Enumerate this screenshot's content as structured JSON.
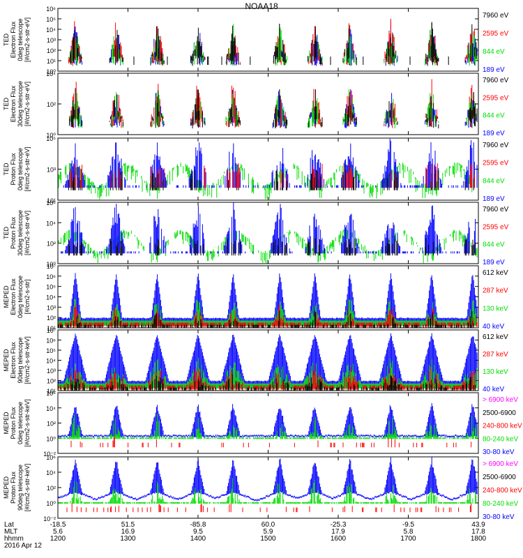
{
  "title": "NOAA18",
  "panels": [
    {
      "ylabel": [
        "TED",
        "Electron Flux",
        "0deg telescope",
        "[#/cm2-s-str-eV]"
      ],
      "yticks": [
        "10⁶",
        "10⁵",
        "10⁴",
        "10³",
        "10²",
        "10¹",
        "10⁰"
      ],
      "ylim": [
        0,
        6
      ],
      "legend": [
        {
          "text": "7960 eV",
          "color": "#000000"
        },
        {
          "text": "2595 eV",
          "color": "#ff0000"
        },
        {
          "text": "844 eV",
          "color": "#00dd00"
        },
        {
          "text": "189 eV",
          "color": "#0000ff"
        }
      ]
    },
    {
      "ylabel": [
        "TED",
        "Electron Flux",
        "30deg telescope",
        "[#/cm2-s-str-eV]"
      ],
      "yticks": [
        "10⁴",
        "10²",
        "10⁰"
      ],
      "ylim": [
        0,
        5
      ],
      "legend": [
        {
          "text": "7960 eV",
          "color": "#000000"
        },
        {
          "text": "2595 eV",
          "color": "#ff0000"
        },
        {
          "text": "844 eV",
          "color": "#00dd00"
        },
        {
          "text": "189 eV",
          "color": "#0000ff"
        }
      ]
    },
    {
      "ylabel": [
        "TED",
        "Proton Flux",
        "0deg telescope",
        "[#/cm2-s-str-eV]"
      ],
      "yticks": [
        "10⁵",
        "10³",
        "10¹"
      ],
      "ylim": [
        0,
        5
      ],
      "legend": [
        {
          "text": "7960 eV",
          "color": "#000000"
        },
        {
          "text": "2595 eV",
          "color": "#ff0000"
        },
        {
          "text": "844 eV",
          "color": "#00dd00"
        },
        {
          "text": "189 eV",
          "color": "#0000ff"
        }
      ]
    },
    {
      "ylabel": [
        "TED",
        "Proton Flux",
        "30deg telescope",
        "[#/cm2-s-str-eV]"
      ],
      "yticks": [
        "10⁶",
        "10⁴",
        "10²",
        "10⁰"
      ],
      "ylim": [
        0,
        6
      ],
      "legend": [
        {
          "text": "7960 eV",
          "color": "#000000"
        },
        {
          "text": "2595 eV",
          "color": "#ff0000"
        },
        {
          "text": "844 eV",
          "color": "#00dd00"
        },
        {
          "text": "189 eV",
          "color": "#0000ff"
        }
      ]
    },
    {
      "ylabel": [
        "MEPED",
        "Electron Flux",
        "0deg telescope",
        "[#/cm2-s-str]"
      ],
      "yticks": [
        "10⁷",
        "10⁶",
        "10⁵",
        "10⁴",
        "10³",
        "10²",
        "10¹"
      ],
      "ylim": [
        1,
        7
      ],
      "legend": [
        {
          "text": "612 keV",
          "color": "#000000"
        },
        {
          "text": "287 keV",
          "color": "#ff0000"
        },
        {
          "text": "130 keV",
          "color": "#00dd00"
        },
        {
          "text": "40 keV",
          "color": "#0000ff"
        }
      ]
    },
    {
      "ylabel": [
        "MEPED",
        "Electron Flux",
        "90deg telescope",
        "[#/cm2-s-str-keV]"
      ],
      "yticks": [
        "10⁷",
        "10⁶",
        "10⁵",
        "10⁴",
        "10³",
        "10²",
        "10¹"
      ],
      "ylim": [
        1,
        7
      ],
      "legend": [
        {
          "text": "612 keV",
          "color": "#000000"
        },
        {
          "text": "287 keV",
          "color": "#ff0000"
        },
        {
          "text": "130 keV",
          "color": "#00dd00"
        },
        {
          "text": "40 keV",
          "color": "#0000ff"
        }
      ]
    },
    {
      "ylabel": [
        "MEPED",
        "Proton Flux",
        "0deg telescope",
        "[#/cm2-s-str-keV]"
      ],
      "yticks": [
        "10⁶",
        "10⁴",
        "10²",
        "10⁰",
        "10⁻²"
      ],
      "ylim": [
        -2,
        6
      ],
      "legend": [
        {
          "text": "> 6900 keV",
          "color": "#ff00ff"
        },
        {
          "text": "2500-6900",
          "color": "#000000"
        },
        {
          "text": "240-800 keV",
          "color": "#ff0000"
        },
        {
          "text": "80-240 keV",
          "color": "#00dd00"
        },
        {
          "text": "30-80 keV",
          "color": "#0000ff"
        }
      ]
    },
    {
      "ylabel": [
        "MEPED",
        "Proton Flux",
        "90deg telescope",
        "[#/cm2-s-str-keV]"
      ],
      "yticks": [
        "10⁶",
        "10⁴",
        "10²",
        "10⁰",
        "10⁻²"
      ],
      "ylim": [
        -2,
        6
      ],
      "legend": [
        {
          "text": "> 6900 keV",
          "color": "#ff00ff"
        },
        {
          "text": "2500-6900",
          "color": "#000000"
        },
        {
          "text": "240-800 keV",
          "color": "#ff0000"
        },
        {
          "text": "80-240 keV",
          "color": "#00dd00"
        },
        {
          "text": "30-80 keV",
          "color": "#0000ff"
        }
      ]
    }
  ],
  "footer": {
    "row_labels": [
      "Lat",
      "MLT",
      "hhmm",
      "2016 Apr 12"
    ],
    "lat": [
      "-18.5",
      "51.5",
      "-85.8",
      "60.0",
      "-25.3",
      "-9.5",
      "43.9"
    ],
    "mlt": [
      "5.6",
      "16.9",
      "9.5",
      "5.9",
      "17.9",
      "5.8",
      "17.8"
    ],
    "hhmm": [
      "1200",
      "1300",
      "1400",
      "1500",
      "1600",
      "1700",
      "1800"
    ]
  },
  "chart_data": {
    "type": "line",
    "x_axis": "UT hhmm",
    "x_ticks": [
      "1200",
      "1300",
      "1400",
      "1500",
      "1600",
      "1700",
      "1800"
    ],
    "xlim": [
      "1200",
      "1800"
    ],
    "y_scale": "log",
    "panel_count": 8,
    "pass_times_hhmm": [
      "1215",
      "1250",
      "1325",
      "1400",
      "1430",
      "1510",
      "1540",
      "1610",
      "1645",
      "1720",
      "1755"
    ]
  }
}
